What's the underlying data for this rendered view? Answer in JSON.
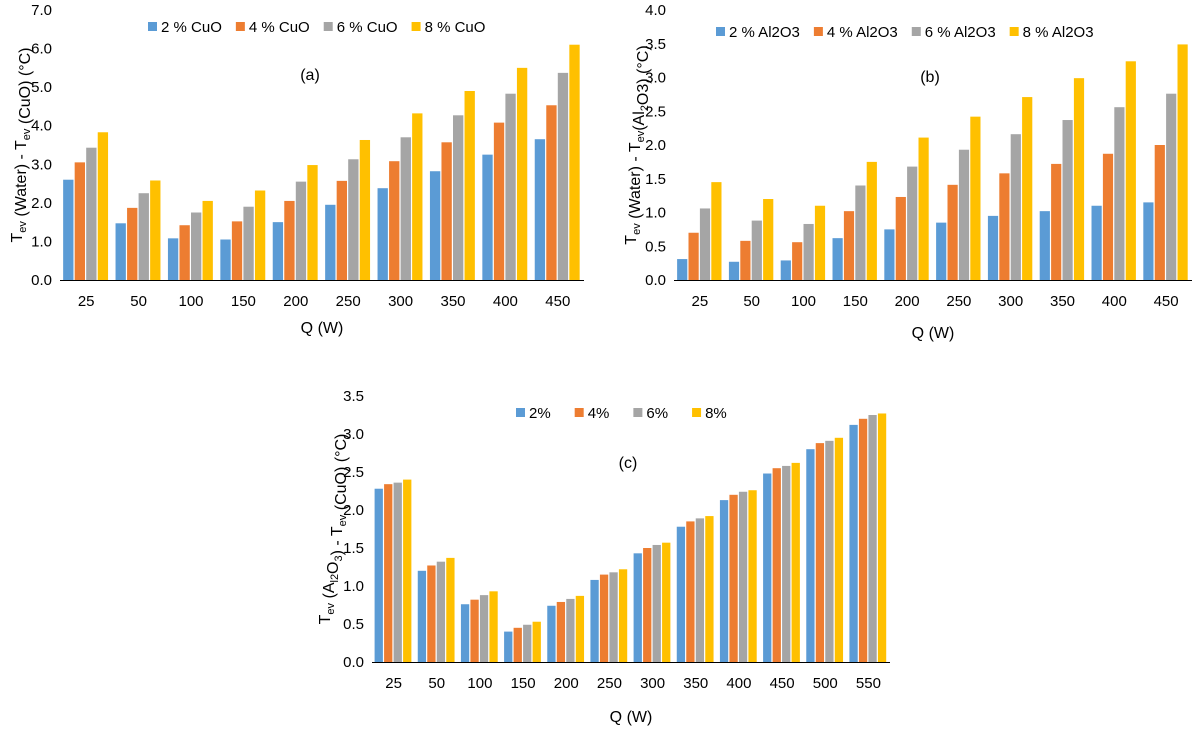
{
  "chart_data": [
    {
      "type": "bar",
      "panel": "(a)",
      "categories": [
        "25",
        "50",
        "100",
        "150",
        "200",
        "250",
        "300",
        "350",
        "400",
        "450"
      ],
      "series": [
        {
          "name": "2 % CuO",
          "color": "#5b9bd5",
          "values": [
            2.6,
            1.47,
            1.08,
            1.05,
            1.5,
            1.95,
            2.38,
            2.82,
            3.25,
            3.65
          ]
        },
        {
          "name": "4 % CuO",
          "color": "#ed7d31",
          "values": [
            3.05,
            1.87,
            1.42,
            1.52,
            2.05,
            2.57,
            3.08,
            3.57,
            4.08,
            4.53
          ]
        },
        {
          "name": "6 % CuO",
          "color": "#a5a5a5",
          "values": [
            3.43,
            2.25,
            1.75,
            1.9,
            2.55,
            3.13,
            3.7,
            4.27,
            4.83,
            5.37
          ]
        },
        {
          "name": "8 % CuO",
          "color": "#ffc000",
          "values": [
            3.83,
            2.58,
            2.05,
            2.32,
            2.98,
            3.63,
            4.32,
            4.9,
            5.5,
            6.1
          ]
        }
      ],
      "ylim": [
        0,
        7
      ],
      "yticks": [
        "0.0",
        "1.0",
        "2.0",
        "3.0",
        "4.0",
        "5.0",
        "6.0",
        "7.0"
      ],
      "xlabel": "Q (W)",
      "ylabel": {
        "parts": [
          "T",
          "ev",
          " (Water) - T",
          "ev",
          " (CuO) (°C)"
        ]
      },
      "legend": "top",
      "grid": false
    },
    {
      "type": "bar",
      "panel": "(b)",
      "categories": [
        "25",
        "50",
        "100",
        "150",
        "200",
        "250",
        "300",
        "350",
        "400",
        "450"
      ],
      "series": [
        {
          "name": "2 % Al2O3",
          "color": "#5b9bd5",
          "values": [
            0.31,
            0.27,
            0.29,
            0.62,
            0.75,
            0.85,
            0.95,
            1.02,
            1.1,
            1.15
          ]
        },
        {
          "name": "4 % Al2O3",
          "color": "#ed7d31",
          "values": [
            0.7,
            0.58,
            0.56,
            1.02,
            1.23,
            1.41,
            1.58,
            1.72,
            1.87,
            2.0
          ]
        },
        {
          "name": "6 % Al2O3",
          "color": "#a5a5a5",
          "values": [
            1.06,
            0.88,
            0.83,
            1.4,
            1.68,
            1.93,
            2.16,
            2.37,
            2.56,
            2.76
          ]
        },
        {
          "name": "8 % Al2O3",
          "color": "#ffc000",
          "values": [
            1.45,
            1.2,
            1.1,
            1.75,
            2.11,
            2.42,
            2.71,
            2.99,
            3.24,
            3.49
          ]
        }
      ],
      "ylim": [
        0,
        4
      ],
      "yticks": [
        "0.0",
        "0.5",
        "1.0",
        "1.5",
        "2.0",
        "2.5",
        "3.0",
        "3.5",
        "4.0"
      ],
      "xlabel": "Q (W)",
      "ylabel": {
        "parts": [
          "T",
          "ev",
          " (Water) - T",
          "ev",
          "(Al",
          "2",
          "O",
          "3",
          ") (°C)"
        ]
      },
      "legend": "top",
      "grid": false
    },
    {
      "type": "bar",
      "panel": "(c)",
      "categories": [
        "25",
        "50",
        "100",
        "150",
        "200",
        "250",
        "300",
        "350",
        "400",
        "450",
        "500",
        "550"
      ],
      "series": [
        {
          "name": "2%",
          "color": "#5b9bd5",
          "values": [
            2.28,
            1.2,
            0.76,
            0.4,
            0.74,
            1.08,
            1.43,
            1.78,
            2.13,
            2.48,
            2.8,
            3.12
          ]
        },
        {
          "name": "4%",
          "color": "#ed7d31",
          "values": [
            2.34,
            1.27,
            0.82,
            0.45,
            0.79,
            1.15,
            1.5,
            1.85,
            2.2,
            2.55,
            2.88,
            3.2
          ]
        },
        {
          "name": "6%",
          "color": "#a5a5a5",
          "values": [
            2.36,
            1.32,
            0.88,
            0.49,
            0.83,
            1.18,
            1.54,
            1.89,
            2.24,
            2.58,
            2.91,
            3.25
          ]
        },
        {
          "name": "8%",
          "color": "#ffc000",
          "values": [
            2.4,
            1.37,
            0.93,
            0.53,
            0.87,
            1.22,
            1.57,
            1.92,
            2.26,
            2.62,
            2.95,
            3.27
          ]
        }
      ],
      "ylim": [
        0,
        3.5
      ],
      "yticks": [
        "0.0",
        "0.5",
        "1.0",
        "1.5",
        "2.0",
        "2.5",
        "3.0",
        "3.5"
      ],
      "xlabel": "Q (W)",
      "ylabel": {
        "parts": [
          "T",
          "ev",
          " (A",
          "l2",
          "O",
          "3",
          ") - T",
          "ev",
          " (CuO) (°C)"
        ]
      },
      "legend": "top",
      "grid": false
    }
  ]
}
